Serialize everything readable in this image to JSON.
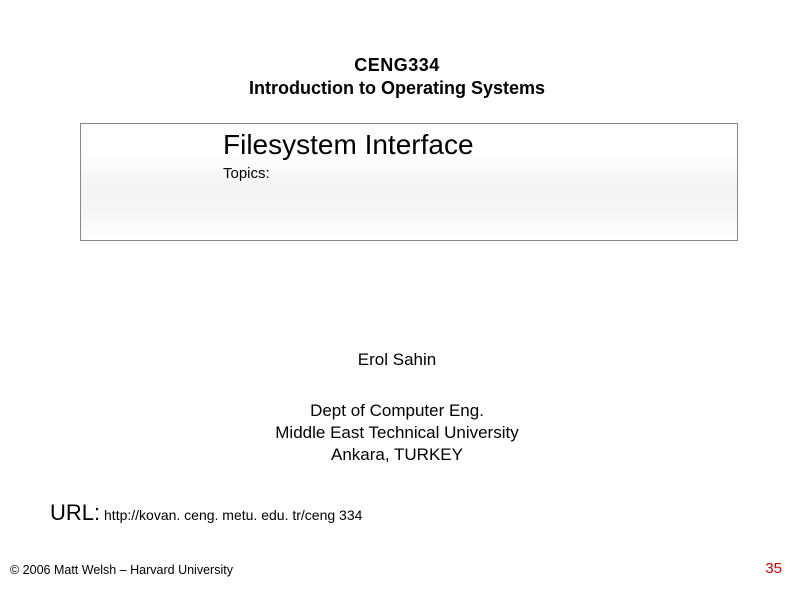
{
  "course": {
    "code": "CENG334",
    "title": "Introduction to Operating Systems"
  },
  "topic": {
    "title": "Filesystem Interface",
    "topics_label": "Topics:"
  },
  "author": {
    "name": "Erol Sahin",
    "dept": "Dept of Computer Eng.",
    "university": "Middle East Technical University",
    "location": "Ankara, TURKEY"
  },
  "url": {
    "label": "URL:",
    "value": "http://kovan. ceng. metu. edu. tr/ceng 334"
  },
  "footer": {
    "copyright": "© 2006 Matt Welsh – Harvard University",
    "slide_number": "35"
  },
  "colors": {
    "text": "#000000",
    "slide_number": "#d00000",
    "border": "#888888",
    "background": "#ffffff",
    "gradient_mid": "#f3f3f3"
  }
}
